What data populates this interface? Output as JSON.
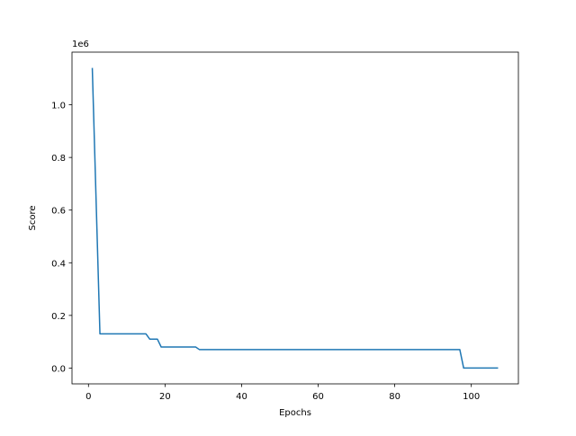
{
  "chart_data": {
    "type": "line",
    "title": "",
    "xlabel": "Epochs",
    "ylabel": "Score",
    "y_offset_label": "1e6",
    "xlim": [
      -4.3,
      112.3
    ],
    "ylim": [
      -60000,
      1200000
    ],
    "x_ticks": [
      0,
      20,
      40,
      60,
      80,
      100
    ],
    "x_tick_labels": [
      "0",
      "20",
      "40",
      "60",
      "80",
      "100"
    ],
    "y_ticks": [
      0,
      200000,
      400000,
      600000,
      800000,
      1000000
    ],
    "y_tick_labels": [
      "0.0",
      "0.2",
      "0.4",
      "0.6",
      "0.8",
      "1.0"
    ],
    "grid": false,
    "series": [
      {
        "color": "#1f77b4",
        "x": [
          1,
          3,
          4,
          15,
          16,
          18,
          19,
          20,
          28,
          29,
          97,
          98,
          107
        ],
        "y": [
          1140000,
          130000,
          130000,
          130000,
          110000,
          110000,
          80000,
          80000,
          80000,
          70000,
          70000,
          0,
          0
        ]
      }
    ]
  }
}
